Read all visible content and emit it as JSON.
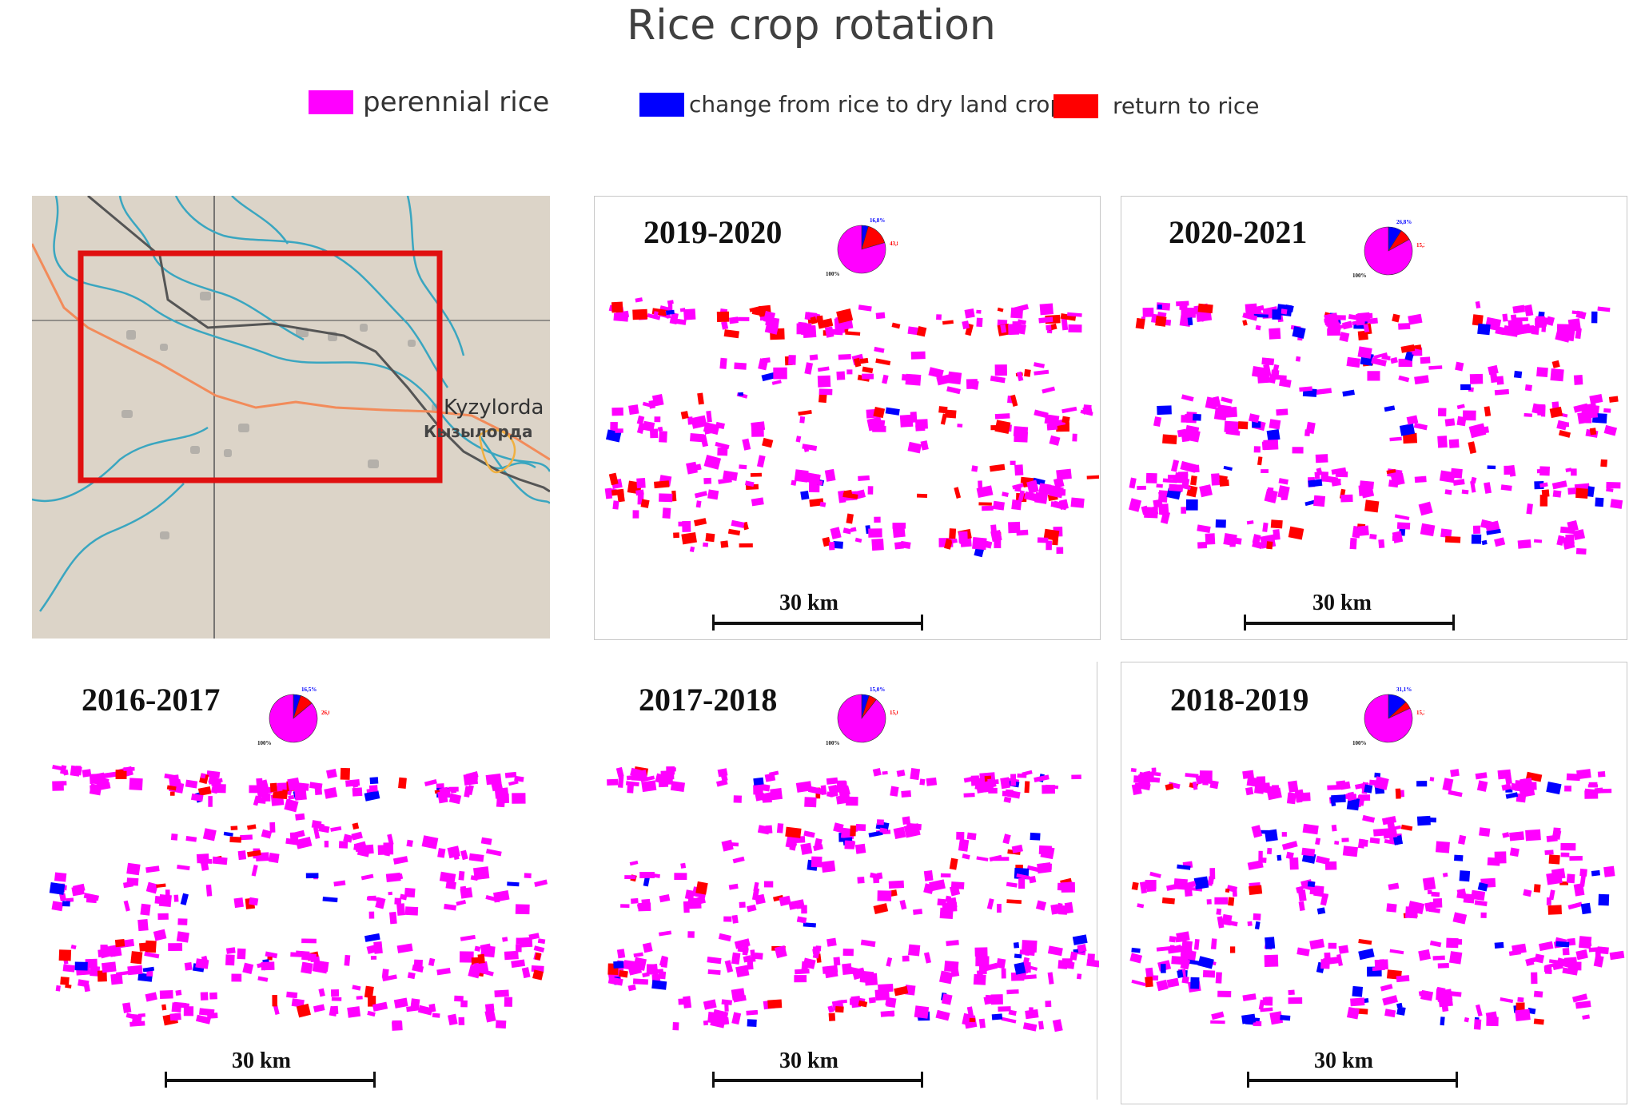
{
  "title": "Rice crop rotation",
  "legend": [
    {
      "label": "perennial rice",
      "color": "#ff00ff"
    },
    {
      "label": "change from rice to dry land crop",
      "color": "#0000ff"
    },
    {
      "label": "return to rice",
      "color": "#ff0000"
    }
  ],
  "overview_map": {
    "city_label_en": "Kyzylorda",
    "city_label_ru": "Кызылорда",
    "extent_box_color": "#e01010"
  },
  "panels": [
    {
      "id": "p2019",
      "year_label": "2019-2020",
      "scale_text": "30 km",
      "pie": {
        "blue_label": "16,8%",
        "red_label": "43,8%",
        "black_label": "100%",
        "blue_share": 0.045,
        "red_share": 0.16
      }
    },
    {
      "id": "p2020",
      "year_label": "2020-2021",
      "scale_text": "30 km",
      "pie": {
        "blue_label": "26,8%",
        "red_label": "15,2%",
        "black_label": "100%",
        "blue_share": 0.09,
        "red_share": 0.08
      }
    },
    {
      "id": "p2016",
      "year_label": "2016-2017",
      "scale_text": "30 km",
      "pie": {
        "blue_label": "16,5%",
        "red_label": "26,0%",
        "black_label": "100%",
        "blue_share": 0.05,
        "red_share": 0.09
      }
    },
    {
      "id": "p2017",
      "year_label": "2017-2018",
      "scale_text": "30 km",
      "pie": {
        "blue_label": "15,0%",
        "red_label": "15,0%",
        "black_label": "100%",
        "blue_share": 0.05,
        "red_share": 0.055
      }
    },
    {
      "id": "p2018",
      "year_label": "2018-2019",
      "scale_text": "30 km",
      "pie": {
        "blue_label": "31,1%",
        "red_label": "15,2%",
        "black_label": "100%",
        "blue_share": 0.13,
        "red_share": 0.05
      }
    }
  ]
}
